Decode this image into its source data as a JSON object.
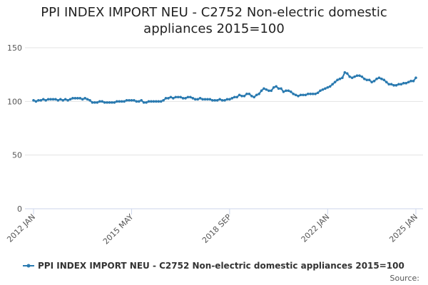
{
  "chart_data": {
    "type": "line",
    "title": "PPI INDEX IMPORT NEU - C2752 Non-electric domestic appliances 2015=100",
    "source": "Source:",
    "categories": [
      "2012 JAN",
      null,
      null,
      null,
      null,
      null,
      null,
      null,
      null,
      null,
      null,
      null,
      null,
      null,
      null,
      null,
      null,
      null,
      null,
      null,
      null,
      null,
      null,
      null,
      null,
      null,
      null,
      null,
      null,
      null,
      null,
      null,
      null,
      null,
      null,
      null,
      null,
      null,
      null,
      null,
      "2015 MAY",
      null,
      null,
      null,
      null,
      null,
      null,
      null,
      null,
      null,
      null,
      null,
      null,
      null,
      null,
      null,
      null,
      null,
      null,
      null,
      null,
      null,
      null,
      null,
      null,
      null,
      null,
      null,
      null,
      null,
      null,
      null,
      null,
      null,
      null,
      null,
      null,
      null,
      null,
      null,
      "2018 SEP",
      null,
      null,
      null,
      null,
      null,
      null,
      null,
      null,
      null,
      null,
      null,
      null,
      null,
      null,
      null,
      null,
      null,
      null,
      null,
      null,
      null,
      null,
      null,
      null,
      null,
      null,
      null,
      null,
      null,
      null,
      null,
      null,
      null,
      null,
      null,
      null,
      null,
      null,
      null,
      "2022 JAN",
      null,
      null,
      null,
      null,
      null,
      null,
      null,
      null,
      null,
      null,
      null,
      null,
      null,
      null,
      null,
      null,
      null,
      null,
      null,
      null,
      null,
      null,
      null,
      null,
      null,
      null,
      null,
      null,
      null,
      null,
      null,
      null,
      null,
      null,
      null,
      "2025 JAN"
    ],
    "series": [
      {
        "name": "PPI INDEX IMPORT NEU - C2752 Non-electric domestic appliances 2015=100",
        "color": "#2a7ab0",
        "values": [
          101,
          100,
          101,
          101,
          102,
          101,
          102,
          102,
          102,
          102,
          101,
          102,
          101,
          102,
          101,
          102,
          103,
          103,
          103,
          103,
          102,
          103,
          102,
          101,
          99,
          99,
          99,
          100,
          100,
          99,
          99,
          99,
          99,
          99,
          100,
          100,
          100,
          100,
          101,
          101,
          101,
          101,
          100,
          100,
          101,
          99,
          99,
          100,
          100,
          100,
          100,
          100,
          100,
          101,
          103,
          103,
          104,
          103,
          104,
          104,
          104,
          103,
          103,
          104,
          104,
          103,
          102,
          102,
          103,
          102,
          102,
          102,
          102,
          101,
          101,
          101,
          102,
          101,
          101,
          102,
          102,
          103,
          104,
          104,
          106,
          105,
          105,
          107,
          107,
          105,
          104,
          106,
          107,
          110,
          112,
          111,
          110,
          110,
          113,
          114,
          112,
          112,
          109,
          110,
          110,
          109,
          107,
          106,
          105,
          106,
          106,
          106,
          107,
          107,
          107,
          107,
          108,
          110,
          111,
          112,
          113,
          114,
          116,
          118,
          120,
          121,
          122,
          127,
          126,
          123,
          122,
          123,
          124,
          124,
          123,
          121,
          120,
          120,
          118,
          119,
          121,
          122,
          121,
          120,
          118,
          116,
          116,
          115,
          115,
          116,
          116,
          117,
          117,
          118,
          119,
          119,
          122
        ]
      }
    ],
    "ylim": [
      0,
      150
    ],
    "yticks": [
      0,
      50,
      100,
      150
    ],
    "grid": true
  }
}
